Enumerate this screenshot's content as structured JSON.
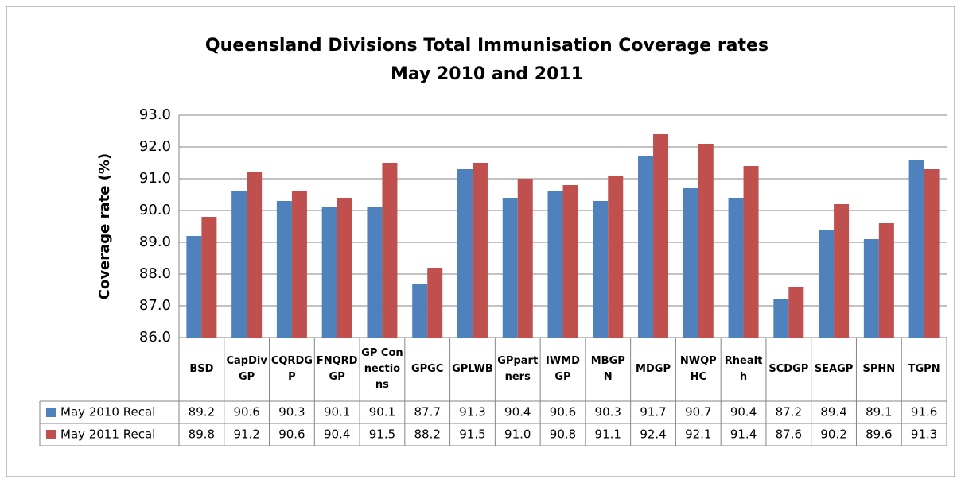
{
  "chart_data": {
    "type": "bar",
    "title": "Queensland Divisions Total Immunisation Coverage rates",
    "subtitle": "May 2010 and 2011",
    "y_label": "Coverage rate (%)",
    "categories": [
      "BSD",
      "CapDivGP",
      "CQRDGP",
      "FNQRDGP",
      "GP Connections",
      "GPGC",
      "GPLWB",
      "GPpartners",
      "IWMDGP",
      "MBGPN",
      "MDGP",
      "NWQPHC",
      "Rhealth",
      "SCDGP",
      "SEAGP",
      "SPHN",
      "TGPN"
    ],
    "series": [
      {
        "name": "May 2010 Recal",
        "color": "#4f81bd",
        "values": [
          89.2,
          90.6,
          90.3,
          90.1,
          90.1,
          87.7,
          91.3,
          90.4,
          90.6,
          90.3,
          91.7,
          90.7,
          90.4,
          87.2,
          89.4,
          89.1,
          91.6
        ],
        "value_labels": [
          "89.2",
          "90.6",
          "90.3",
          "90.1",
          "90.1",
          "87.7",
          "91.3",
          "90.4",
          "90.6",
          "90.3",
          "91.7",
          "90.7",
          "90.4",
          "87.2",
          "89.4",
          "89.1",
          "91.6"
        ]
      },
      {
        "name": "May 2011 Recal",
        "color": "#c0504d",
        "values": [
          89.8,
          91.2,
          90.6,
          90.4,
          91.5,
          88.2,
          91.5,
          91.0,
          90.8,
          91.1,
          92.4,
          92.1,
          91.4,
          87.6,
          90.2,
          89.6,
          91.3
        ],
        "value_labels": [
          "89.8",
          "91.2",
          "90.6",
          "90.4",
          "91.5",
          "88.2",
          "91.5",
          "91.0",
          "90.8",
          "91.1",
          "92.4",
          "92.1",
          "91.4",
          "87.6",
          "90.2",
          "89.6",
          "91.3"
        ]
      }
    ],
    "ylim": [
      86,
      93
    ],
    "yticks": [
      {
        "value": 86,
        "label": "86.0"
      },
      {
        "value": 87,
        "label": "87.0"
      },
      {
        "value": 88,
        "label": "88.0"
      },
      {
        "value": 89,
        "label": "89.0"
      },
      {
        "value": 90,
        "label": "90.0"
      },
      {
        "value": 91,
        "label": "91.0"
      },
      {
        "value": 92,
        "label": "92.0"
      },
      {
        "value": 93,
        "label": "93.0"
      }
    ],
    "grid": true
  }
}
